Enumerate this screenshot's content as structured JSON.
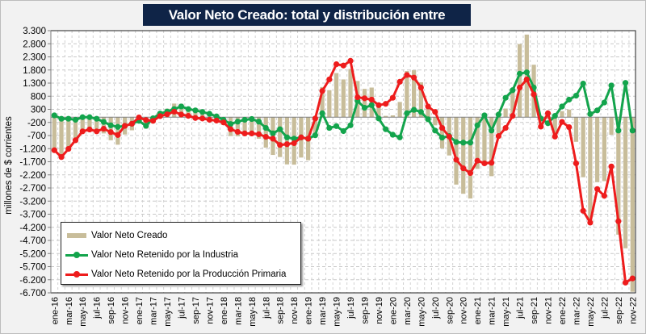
{
  "title": "Valor Neto Creado: total y distribución entre eslabones",
  "colors": {
    "bar": "#c8bd9a",
    "industria": "#13a44c",
    "primaria": "#ee1c1c",
    "title_bg": "#0f2447"
  },
  "legend": {
    "items": [
      {
        "label": "Valor Neto Creado",
        "type": "bar"
      },
      {
        "label": "Valor Neto Retenido por la Industria",
        "type": "line"
      },
      {
        "label": "Valor Neto Retenido por la Producción Primaria",
        "type": "line"
      }
    ]
  },
  "chart_data": {
    "type": "bar+line",
    "title": "Valor Neto Creado: total y distribución entre eslabones",
    "xlabel": "",
    "ylabel": "millones de $ corrientes",
    "ylim": [
      -6700,
      3300
    ],
    "ytick_step": 500,
    "ytick_labels": [
      "3.300",
      "2.800",
      "2.300",
      "1.800",
      "1.300",
      "800",
      "300",
      "-200",
      "-700",
      "-1.200",
      "-1.700",
      "-2.200",
      "-2.700",
      "-3.200",
      "-3.700",
      "-4.200",
      "-4.700",
      "-5.200",
      "-5.700",
      "-6.200",
      "-6.700"
    ],
    "grid": true,
    "legend_position": "bottom-left",
    "xtick_labels": [
      "ene-16",
      "mar-16",
      "may-16",
      "jul-16",
      "sep-16",
      "nov-16",
      "ene-17",
      "mar-17",
      "may-17",
      "jul-17",
      "sep-17",
      "nov-17",
      "ene-18",
      "mar-18",
      "may-18",
      "jul-18",
      "sep-18",
      "nov-18",
      "ene-19",
      "mar-19",
      "may-19",
      "jul-19",
      "sep-19",
      "nov-19",
      "ene-20",
      "mar-20",
      "may-20",
      "jul-20",
      "sep-20",
      "nov-20",
      "ene-21",
      "mar-21",
      "may-21",
      "jul-21",
      "sep-21",
      "nov-21",
      "ene-22",
      "mar-22",
      "may-22",
      "jul-22",
      "sep-22",
      "nov-22"
    ],
    "x": [
      "ene-16",
      "feb-16",
      "mar-16",
      "abr-16",
      "may-16",
      "jun-16",
      "jul-16",
      "ago-16",
      "sep-16",
      "oct-16",
      "nov-16",
      "dic-16",
      "ene-17",
      "feb-17",
      "mar-17",
      "abr-17",
      "may-17",
      "jun-17",
      "jul-17",
      "ago-17",
      "sep-17",
      "oct-17",
      "nov-17",
      "dic-17",
      "ene-18",
      "feb-18",
      "mar-18",
      "abr-18",
      "may-18",
      "jun-18",
      "jul-18",
      "ago-18",
      "sep-18",
      "oct-18",
      "nov-18",
      "dic-18",
      "ene-19",
      "feb-19",
      "mar-19",
      "abr-19",
      "may-19",
      "jun-19",
      "jul-19",
      "ago-19",
      "sep-19",
      "oct-19",
      "nov-19",
      "dic-19",
      "ene-20",
      "feb-20",
      "mar-20",
      "abr-20",
      "may-20",
      "jun-20",
      "jul-20",
      "ago-20",
      "sep-20",
      "oct-20",
      "nov-20",
      "dic-20",
      "ene-21",
      "feb-21",
      "mar-21",
      "abr-21",
      "may-21",
      "jun-21",
      "jul-21",
      "ago-21",
      "sep-21",
      "oct-21",
      "nov-21",
      "dic-21",
      "ene-22",
      "feb-22",
      "mar-22",
      "abr-22",
      "may-22",
      "jun-22",
      "jul-22",
      "ago-22",
      "sep-22",
      "oct-22",
      "nov-22"
    ],
    "series": [
      {
        "name": "Valor Neto Creado",
        "type": "bar",
        "values": [
          -1190,
          -1580,
          -1270,
          -980,
          -540,
          -470,
          -600,
          -620,
          -880,
          -1050,
          -660,
          -500,
          -150,
          -440,
          -180,
          180,
          325,
          520,
          510,
          360,
          230,
          150,
          30,
          -100,
          -300,
          -720,
          -730,
          -720,
          -690,
          -820,
          -1160,
          -1440,
          -1520,
          -1800,
          -1810,
          -1540,
          -1640,
          -740,
          1150,
          1030,
          1680,
          1440,
          1840,
          1380,
          1080,
          1130,
          410,
          50,
          70,
          580,
          1760,
          1790,
          1330,
          330,
          -310,
          -1190,
          -1460,
          -2570,
          -2920,
          -3100,
          -1970,
          -1690,
          -2250,
          -620,
          330,
          1080,
          2790,
          3150,
          2000,
          -410,
          -80,
          -690,
          230,
          290,
          -940,
          -2290,
          -3900,
          -2480,
          -2440,
          -670,
          -4480,
          -5000,
          -6660
        ]
      },
      {
        "name": "Valor Neto Retenido por la Industria",
        "type": "line",
        "values": [
          70,
          -60,
          -60,
          -100,
          0,
          0,
          -60,
          -180,
          -310,
          -370,
          -330,
          -250,
          -140,
          -330,
          -40,
          140,
          215,
          310,
          410,
          310,
          260,
          200,
          130,
          30,
          -100,
          -260,
          -170,
          -100,
          -70,
          -170,
          -410,
          -620,
          -460,
          -770,
          -820,
          -770,
          -820,
          -690,
          150,
          -410,
          -340,
          -530,
          -310,
          620,
          360,
          460,
          -50,
          -460,
          -670,
          -770,
          150,
          280,
          200,
          -80,
          -510,
          -780,
          -720,
          -950,
          -970,
          -970,
          -310,
          70,
          -510,
          100,
          740,
          1030,
          1660,
          1710,
          1130,
          -50,
          -230,
          50,
          410,
          670,
          820,
          1280,
          120,
          260,
          560,
          1210,
          -510,
          1310,
          -510
        ]
      },
      {
        "name": "Valor Neto Retenido por la Producción Primaria",
        "type": "line",
        "values": [
          -1260,
          -1520,
          -1210,
          -880,
          -540,
          -470,
          -540,
          -440,
          -570,
          -680,
          -330,
          -250,
          -10,
          -110,
          -140,
          40,
          110,
          210,
          100,
          50,
          -30,
          -50,
          -100,
          -130,
          -200,
          -460,
          -560,
          -620,
          -620,
          -650,
          -750,
          -820,
          -1060,
          -1030,
          -990,
          -770,
          -820,
          -50,
          1000,
          1440,
          2020,
          1970,
          2150,
          760,
          720,
          670,
          460,
          510,
          740,
          1350,
          1610,
          1510,
          1130,
          410,
          200,
          -410,
          -740,
          -1620,
          -1950,
          -2130,
          -1660,
          -1760,
          -1740,
          -720,
          -410,
          50,
          1130,
          1440,
          870,
          -360,
          150,
          -740,
          -180,
          -380,
          -1760,
          -3570,
          -4020,
          -2740,
          -3000,
          -1880,
          -3970,
          -6310,
          -6150
        ]
      }
    ]
  }
}
